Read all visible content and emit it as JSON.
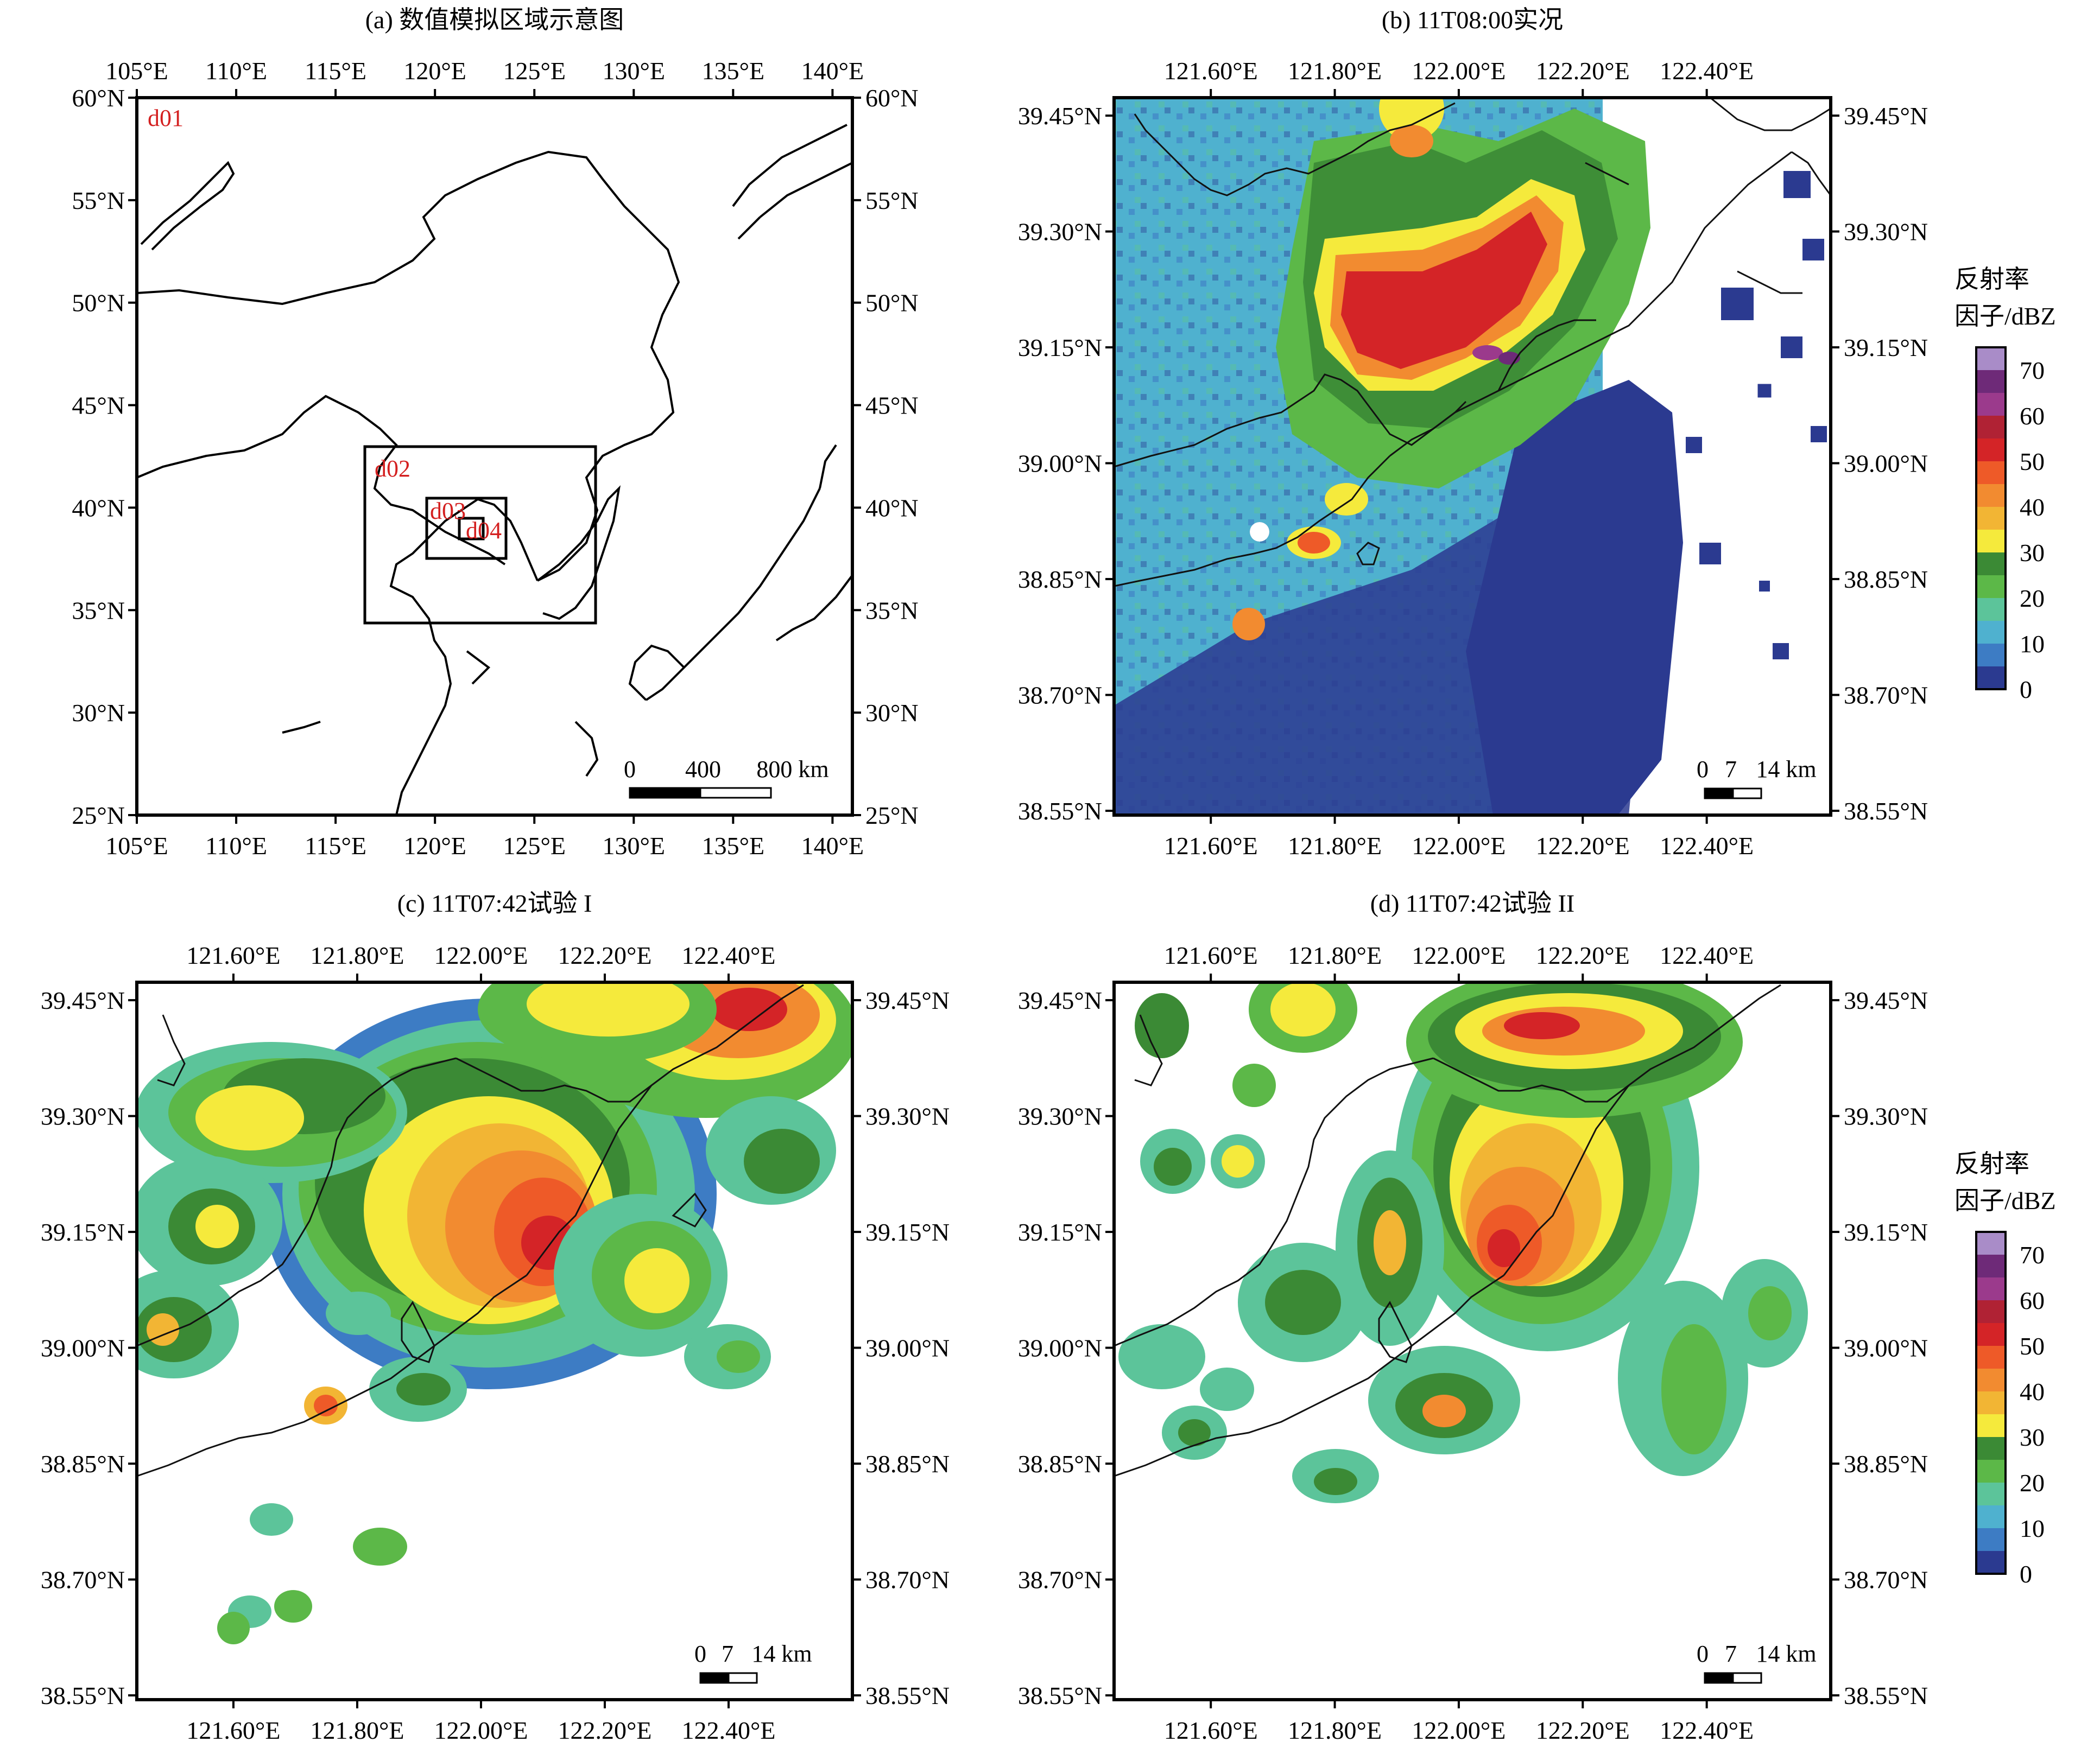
{
  "colors": {
    "frame": "#000000",
    "coast": "#000000",
    "domain_label": "#d42020",
    "radar_bg": "#ffffff"
  },
  "panels": {
    "a": {
      "title": "(a) 数值模拟区域示意图",
      "lon_ticks": [
        "105°E",
        "110°E",
        "115°E",
        "120°E",
        "125°E",
        "130°E",
        "135°E",
        "140°E"
      ],
      "lat_ticks": [
        "60°N",
        "55°N",
        "50°N",
        "45°N",
        "40°N",
        "35°N",
        "30°N",
        "25°N"
      ],
      "lon_range": [
        105,
        141
      ],
      "lat_range": [
        25,
        60
      ],
      "domains": [
        {
          "name": "d01",
          "lon": [
            105,
            141
          ],
          "lat": [
            25,
            60
          ]
        },
        {
          "name": "d02",
          "lon": [
            116.6,
            128.2
          ],
          "lat": [
            34.4,
            43.2
          ]
        },
        {
          "name": "d03",
          "lon": [
            119.8,
            123.8
          ],
          "lat": [
            37.5,
            40.5
          ]
        },
        {
          "name": "d04",
          "lon": [
            121.4,
            122.6
          ],
          "lat": [
            38.5,
            39.5
          ]
        }
      ],
      "scale_bar": {
        "zero": "0",
        "mid": "400",
        "end": "800 km"
      }
    },
    "b": {
      "title": "(b) 11T08:00实况"
    },
    "c": {
      "title": "(c) 11T07:42试验 I"
    },
    "d": {
      "title": "(d) 11T07:42试验 II"
    },
    "small_lon_ticks": [
      "121.60°E",
      "121.80°E",
      "122.00°E",
      "122.20°E",
      "122.40°E"
    ],
    "small_lat_ticks": [
      "39.45°N",
      "39.30°N",
      "39.15°N",
      "39.00°N",
      "38.85°N",
      "38.70°N",
      "38.55°N"
    ],
    "small_scale_bar": {
      "zero": "0",
      "mid": "7",
      "end": "14 km"
    }
  },
  "colorbar": {
    "title_line1": "反射率",
    "title_line2": "因子/dBZ",
    "units": "dBZ",
    "range": [
      0,
      75
    ],
    "tick_labels": [
      "70",
      "60",
      "50",
      "40",
      "30",
      "20",
      "10",
      "0"
    ],
    "levels": [
      {
        "from": 0,
        "to": 5,
        "color": "#2b3a90"
      },
      {
        "from": 5,
        "to": 10,
        "color": "#3d7cc4"
      },
      {
        "from": 10,
        "to": 15,
        "color": "#4fb1cf"
      },
      {
        "from": 15,
        "to": 20,
        "color": "#5cc49a"
      },
      {
        "from": 20,
        "to": 25,
        "color": "#5cb848"
      },
      {
        "from": 25,
        "to": 30,
        "color": "#3b8a35"
      },
      {
        "from": 30,
        "to": 35,
        "color": "#f5ea3c"
      },
      {
        "from": 35,
        "to": 40,
        "color": "#f2b534"
      },
      {
        "from": 40,
        "to": 45,
        "color": "#f28b30"
      },
      {
        "from": 45,
        "to": 50,
        "color": "#ee5a28"
      },
      {
        "from": 50,
        "to": 55,
        "color": "#d42427"
      },
      {
        "from": 55,
        "to": 60,
        "color": "#b02234"
      },
      {
        "from": 60,
        "to": 65,
        "color": "#9b3a8c"
      },
      {
        "from": 65,
        "to": 70,
        "color": "#6e2a78"
      },
      {
        "from": 70,
        "to": 75,
        "color": "#a98cc8"
      }
    ]
  }
}
